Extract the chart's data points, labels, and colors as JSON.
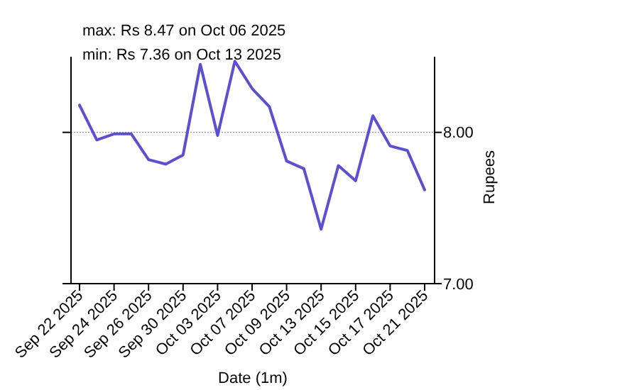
{
  "chart_data": {
    "type": "line",
    "annotations": [
      "max: Rs 8.47 on Oct 06 2025",
      "min: Rs 7.36 on Oct 13 2025"
    ],
    "xlabel": "Date (1m)",
    "ylabel": "Rupees",
    "categories": [
      "Sep 22 2025",
      null,
      "Sep 24 2025",
      null,
      "Sep 26 2025",
      null,
      "Sep 30 2025",
      null,
      "Oct 03 2025",
      null,
      "Oct 07 2025",
      null,
      "Oct 09 2025",
      null,
      "Oct 13 2025",
      null,
      "Oct 15 2025",
      null,
      "Oct 17 2025",
      null,
      "Oct 21 2025"
    ],
    "series": [
      {
        "color": "#5b50d0",
        "values": [
          8.18,
          7.95,
          7.99,
          7.99,
          7.82,
          7.79,
          7.85,
          8.45,
          7.98,
          8.47,
          8.29,
          8.17,
          7.81,
          7.76,
          7.36,
          7.78,
          7.68,
          8.11,
          7.91,
          7.88,
          7.62
        ]
      }
    ],
    "ylim": [
      7,
      8.5
    ],
    "yticks": [
      {
        "value": 7,
        "label": "7.00"
      },
      {
        "value": 8,
        "label": "8.00"
      }
    ],
    "ref_lines": [
      {
        "axis": "y",
        "value": 8,
        "color": "#999999",
        "line_style": "dotted"
      }
    ],
    "marker": "none",
    "line_style": "solid"
  }
}
